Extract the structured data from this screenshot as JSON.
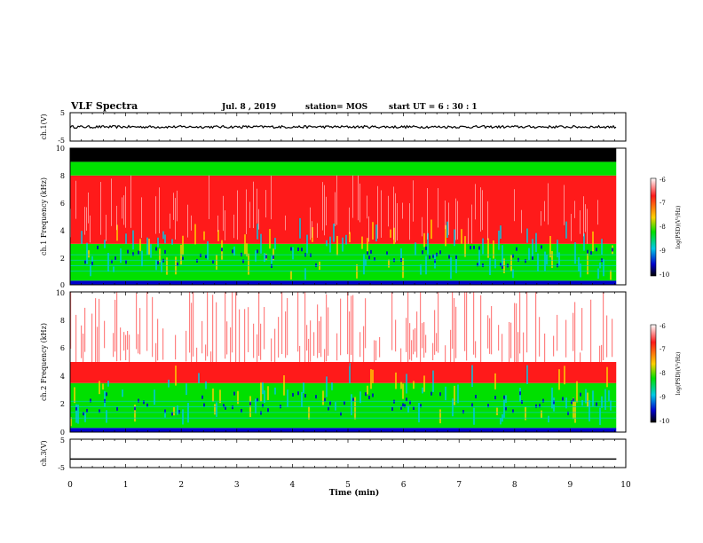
{
  "header": {
    "title": "VLF Spectra",
    "date": "Jul. 8 , 2019",
    "station": "station= MOS",
    "start_ut": "start UT = 6 : 30 : 1"
  },
  "colors": {
    "high": "#ff1a1a",
    "mid_high": "#ffd000",
    "mid": "#00e000",
    "mid_low": "#00c8e6",
    "low": "#0000cc",
    "floor": "#000000"
  },
  "chart_data": [
    {
      "type": "line",
      "panel": "ch.1 waveform",
      "ylabel": "ch.1(V)",
      "ylim": [
        -5,
        5
      ],
      "yticks": [
        "5",
        "-5"
      ],
      "x": [
        0,
        9.83
      ],
      "values": [
        0,
        0
      ],
      "xlim": [
        0,
        10
      ]
    },
    {
      "type": "heatmap",
      "panel": "ch.1 spectrogram",
      "ylabel": "ch.1 Frequency (kHz)",
      "ylim": [
        0,
        10
      ],
      "yticks": [
        "0",
        "2",
        "4",
        "6",
        "8",
        "10"
      ],
      "xlim": [
        0,
        10
      ],
      "data_extent_min": 9.83,
      "saturation_top_khz": 9.3,
      "colorbar": {
        "label": "log(PSD)(V²/Hz)",
        "range": [
          -10,
          -6
        ],
        "ticks": [
          "-6",
          "-7",
          "-8",
          "-9",
          "-10"
        ]
      },
      "bands": [
        {
          "from_khz": 0.0,
          "to_khz": 0.3,
          "level": "low"
        },
        {
          "from_khz": 0.3,
          "to_khz": 3.0,
          "level": "mid"
        },
        {
          "from_khz": 3.0,
          "to_khz": 8.0,
          "level": "high"
        },
        {
          "from_khz": 8.0,
          "to_khz": 9.0,
          "level": "mid"
        },
        {
          "from_khz": 9.0,
          "to_khz": 10.0,
          "level": "floor"
        }
      ]
    },
    {
      "type": "heatmap",
      "panel": "ch.2 spectrogram",
      "ylabel": "ch.2 Frequency (kHz)",
      "ylim": [
        0,
        10
      ],
      "yticks": [
        "0",
        "2",
        "4",
        "6",
        "8",
        "10"
      ],
      "xlim": [
        0,
        10
      ],
      "data_extent_min": 9.83,
      "colorbar": {
        "label": "log(PSD)(V²/Hz)",
        "range": [
          -10,
          -6
        ],
        "ticks": [
          "-6",
          "-7",
          "-8",
          "-9",
          "-10"
        ]
      },
      "bands": [
        {
          "from_khz": 0.0,
          "to_khz": 0.3,
          "level": "low"
        },
        {
          "from_khz": 0.3,
          "to_khz": 3.5,
          "level": "mid"
        },
        {
          "from_khz": 3.5,
          "to_khz": 5.0,
          "level": "high"
        },
        {
          "from_khz": 5.0,
          "to_khz": 10.0,
          "level": "sparse"
        }
      ]
    },
    {
      "type": "line",
      "panel": "ch.3 waveform",
      "ylabel": "ch.3(V)",
      "ylim": [
        -5,
        5
      ],
      "yticks": [
        "5",
        "-5"
      ],
      "x": [
        0,
        9.83
      ],
      "values": [
        -2,
        -2
      ],
      "xlim": [
        0,
        10
      ],
      "xlabel": "Time (min)",
      "xticks": [
        "0",
        "1",
        "2",
        "3",
        "4",
        "5",
        "6",
        "7",
        "8",
        "9",
        "10"
      ]
    }
  ]
}
